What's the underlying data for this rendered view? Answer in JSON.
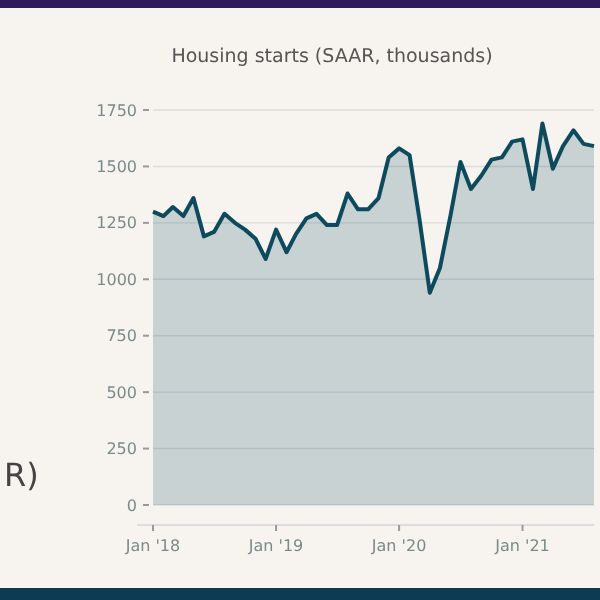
{
  "chart_data": {
    "type": "area",
    "title": "Housing starts (SAAR, thousands)",
    "annotations": [
      "R)"
    ],
    "x": [
      "2018-01",
      "2018-02",
      "2018-03",
      "2018-04",
      "2018-05",
      "2018-06",
      "2018-07",
      "2018-08",
      "2018-09",
      "2018-10",
      "2018-11",
      "2018-12",
      "2019-01",
      "2019-02",
      "2019-03",
      "2019-04",
      "2019-05",
      "2019-06",
      "2019-07",
      "2019-08",
      "2019-09",
      "2019-10",
      "2019-11",
      "2019-12",
      "2020-01",
      "2020-02",
      "2020-03",
      "2020-04",
      "2020-05",
      "2020-06",
      "2020-07",
      "2020-08",
      "2020-09",
      "2020-10",
      "2020-11",
      "2020-12",
      "2021-01",
      "2021-02",
      "2021-03",
      "2021-04",
      "2021-05",
      "2021-06",
      "2021-07",
      "2021-08"
    ],
    "series": [
      {
        "color": "#0d4a5e",
        "values": [
          1300,
          1280,
          1320,
          1280,
          1360,
          1190,
          1210,
          1290,
          1250,
          1220,
          1180,
          1090,
          1220,
          1120,
          1200,
          1270,
          1290,
          1240,
          1240,
          1380,
          1310,
          1310,
          1360,
          1540,
          1580,
          1550,
          1270,
          940,
          1050,
          1280,
          1520,
          1400,
          1460,
          1530,
          1540,
          1610,
          1620,
          1400,
          1690,
          1490,
          1590,
          1660,
          1600,
          1590
        ]
      }
    ],
    "xlim": [
      "2018-01",
      "2021-08"
    ],
    "xticks": [
      {
        "value": "2018-01",
        "label": "Jan '18"
      },
      {
        "value": "2019-01",
        "label": "Jan '19"
      },
      {
        "value": "2020-01",
        "label": "Jan '20"
      },
      {
        "value": "2021-01",
        "label": "Jan '21"
      }
    ],
    "ylim": [
      0,
      1750
    ],
    "yticks": [
      0,
      250,
      500,
      750,
      1000,
      1250,
      1500,
      1750
    ],
    "grid": "y"
  }
}
